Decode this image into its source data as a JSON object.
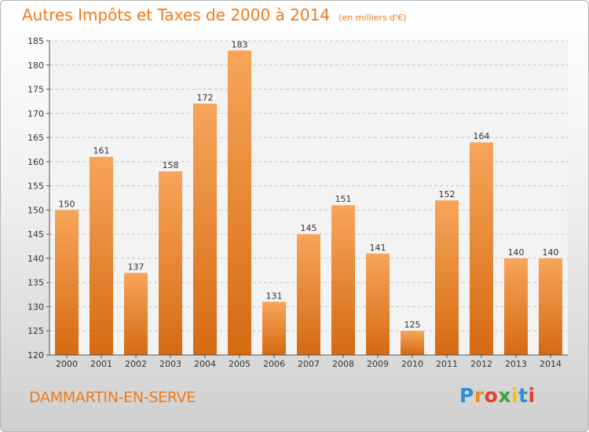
{
  "title": "Autres Impôts et Taxes de 2000 à 2014",
  "unit_note": "(en milliers d'€)",
  "commune": "DAMMARTIN-EN-SERVE",
  "logo": {
    "letters": [
      "P",
      "r",
      "o",
      "x",
      "i",
      "t",
      "i"
    ],
    "colors": [
      "#2f8fd0",
      "#f08a1a",
      "#e83e2a",
      "#3aa33a",
      "#f0c020",
      "#2f8fd0",
      "#e83e2a"
    ]
  },
  "colors": {
    "bar_top": "#f7a55a",
    "bar_bottom": "#d56a12",
    "accent": "#f07a1a"
  },
  "chart_data": {
    "type": "bar",
    "categories": [
      "2000",
      "2001",
      "2002",
      "2003",
      "2004",
      "2005",
      "2006",
      "2007",
      "2008",
      "2009",
      "2010",
      "2011",
      "2012",
      "2013",
      "2014"
    ],
    "values": [
      150,
      161,
      137,
      158,
      172,
      183,
      131,
      145,
      151,
      141,
      125,
      152,
      164,
      140,
      140
    ],
    "ylim": [
      120,
      185
    ],
    "yticks": [
      120,
      125,
      130,
      135,
      140,
      145,
      150,
      155,
      160,
      165,
      170,
      175,
      180,
      185
    ],
    "grid": true
  }
}
